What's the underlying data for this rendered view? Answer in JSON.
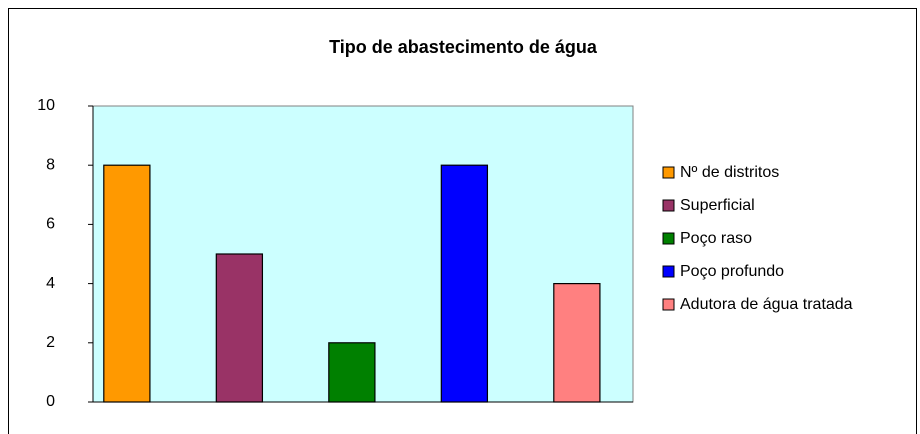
{
  "chart_data": {
    "type": "bar",
    "title": "Tipo de abastecimento de água",
    "categories": [
      null
    ],
    "series": [
      {
        "name": "Nº de distritos",
        "color": "#ff9900",
        "values": [
          8
        ]
      },
      {
        "name": "Superficial",
        "color": "#993366",
        "values": [
          5
        ]
      },
      {
        "name": "Poço raso",
        "color": "#008000",
        "values": [
          2
        ]
      },
      {
        "name": "Poço profundo",
        "color": "#0000ff",
        "values": [
          8
        ]
      },
      {
        "name": "Adutora de água tratada",
        "color": "#ff8080",
        "values": [
          4
        ]
      }
    ],
    "ylim": [
      0,
      10
    ],
    "yticks": [
      0,
      2,
      4,
      6,
      8,
      10
    ],
    "grid": false,
    "legend": "right"
  }
}
